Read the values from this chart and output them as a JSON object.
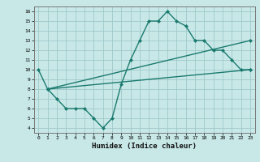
{
  "background_color": "#c8e8e8",
  "line_color": "#1a7a6e",
  "grid_color": "#a0c8c8",
  "xlabel": "Humidex (Indice chaleur)",
  "ylim": [
    3.5,
    16.5
  ],
  "xlim": [
    -0.5,
    23.5
  ],
  "yticks": [
    4,
    5,
    6,
    7,
    8,
    9,
    10,
    11,
    12,
    13,
    14,
    15,
    16
  ],
  "xticks": [
    0,
    1,
    2,
    3,
    4,
    5,
    6,
    7,
    8,
    9,
    10,
    11,
    12,
    13,
    14,
    15,
    16,
    17,
    18,
    19,
    20,
    21,
    22,
    23
  ],
  "curve1_x": [
    0,
    1,
    2,
    3,
    4,
    5,
    6,
    7,
    8,
    9,
    10,
    11,
    12,
    13,
    14,
    15,
    16,
    17,
    18,
    19,
    20,
    21,
    22,
    23
  ],
  "curve1_y": [
    10,
    8,
    7,
    6,
    6,
    6,
    5,
    4,
    5,
    8.5,
    11,
    13,
    15,
    15,
    16,
    15,
    14.5,
    13,
    13,
    12,
    12,
    11,
    10,
    10
  ],
  "curve2_x": [
    1,
    23
  ],
  "curve2_y": [
    8,
    13
  ],
  "curve3_x": [
    1,
    23
  ],
  "curve3_y": [
    8,
    10
  ]
}
